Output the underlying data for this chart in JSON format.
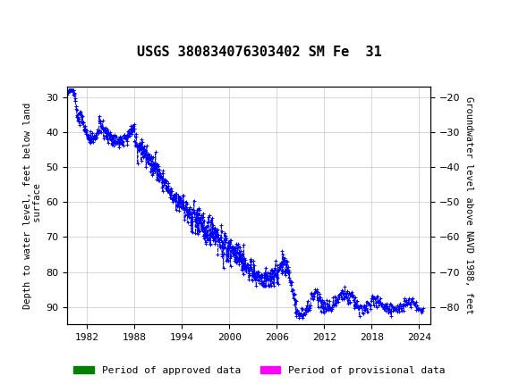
{
  "title": "USGS 380834076303402 SM Fe  31",
  "xlim": [
    1979.5,
    2025.5
  ],
  "ylim_left": [
    95,
    27
  ],
  "ylim_right": [
    -85,
    -17
  ],
  "yticks_left": [
    30,
    40,
    50,
    60,
    70,
    80,
    90
  ],
  "yticks_right": [
    -20,
    -30,
    -40,
    -50,
    -60,
    -70,
    -80
  ],
  "xtick_positions": [
    1982,
    1988,
    1994,
    2000,
    2006,
    2012,
    2018,
    2024
  ],
  "ylabel_left": "Depth to water level, feet below land\n surface",
  "ylabel_right": "Groundwater level above NAVD 1988, feet",
  "line_color": "#0000FF",
  "marker": "+",
  "marker_size": 3,
  "line_style": "--",
  "line_width": 0.7,
  "bg_color": "#ffffff",
  "grid_color": "#c8c8c8",
  "header_color": "#1a7045",
  "approved_color": "#008000",
  "provisional_color": "#ff00ff",
  "font_family": "monospace",
  "title_fontsize": 11,
  "label_fontsize": 7.5,
  "tick_fontsize": 8
}
